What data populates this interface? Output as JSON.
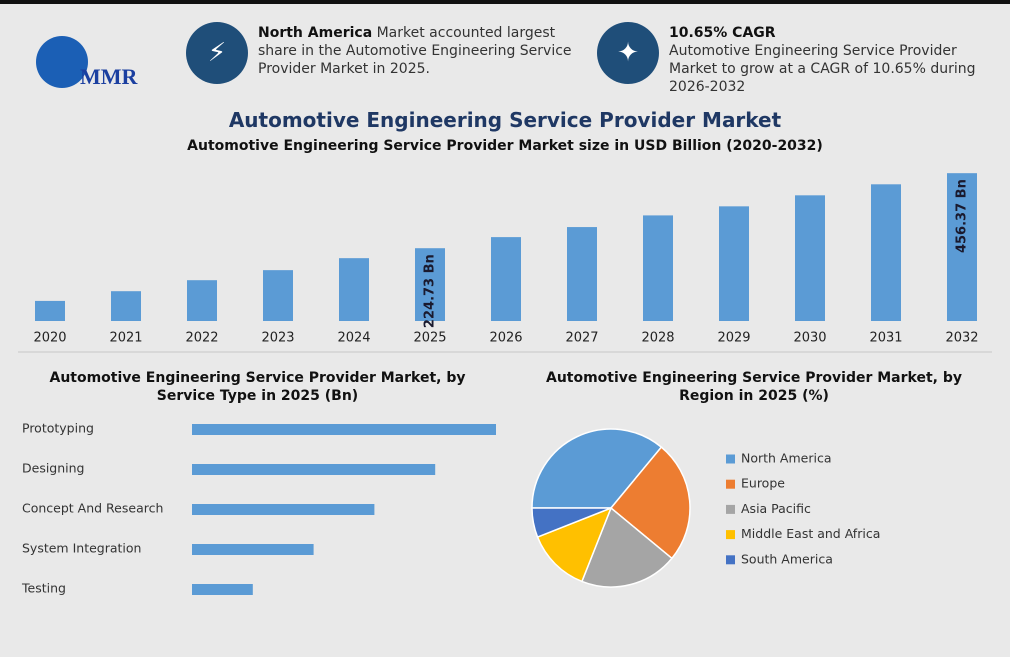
{
  "header": {
    "logo": "MMR",
    "info": [
      {
        "title": "North America",
        "text": "Market accounted largest share in the Automotive Engineering Service Provider Market in 2025."
      },
      {
        "title": "10.65% CAGR",
        "text": "Automotive Engineering Service Provider Market to grow at a CAGR of 10.65% during 2026-2032"
      }
    ]
  },
  "chart_data": [
    {
      "type": "bar",
      "title": "Automotive Engineering Service Provider Market",
      "subtitle": "Automotive Engineering Service Provider Market size in USD Billion (2020-2032)",
      "categories": [
        "2020",
        "2021",
        "2022",
        "2023",
        "2024",
        "2025",
        "2026",
        "2027",
        "2028",
        "2029",
        "2030",
        "2031",
        "2032"
      ],
      "values": [
        62,
        92,
        126,
        157,
        194,
        224.73,
        259,
        290,
        326,
        354,
        388,
        422,
        456.37
      ],
      "value_labels": [
        null,
        null,
        null,
        null,
        null,
        "224.73 Bn",
        null,
        null,
        null,
        null,
        null,
        null,
        "456.37 Bn"
      ],
      "color": "#5b9bd5",
      "ylim": [
        0,
        460
      ]
    },
    {
      "type": "hbar",
      "title": "Automotive Engineering Service Provider Market, by Service Type in 2025 (Bn)",
      "categories": [
        "Prototyping",
        "Designing",
        "Concept And Research",
        "System Integration",
        "Testing"
      ],
      "values": [
        75,
        60,
        45,
        30,
        15
      ],
      "color": "#5b9bd5",
      "xlim": [
        0,
        75
      ]
    },
    {
      "type": "pie",
      "title": "Automotive Engineering Service Provider Market, by Region in 2025 (%)",
      "categories": [
        "North America",
        "Europe",
        "Asia Pacific",
        "Middle East and Africa",
        "South America"
      ],
      "values": [
        36,
        25,
        20,
        13,
        6
      ],
      "colors": [
        "#5b9bd5",
        "#ed7d31",
        "#a5a5a5",
        "#ffc000",
        "#4472c4"
      ],
      "legend": "right"
    }
  ]
}
